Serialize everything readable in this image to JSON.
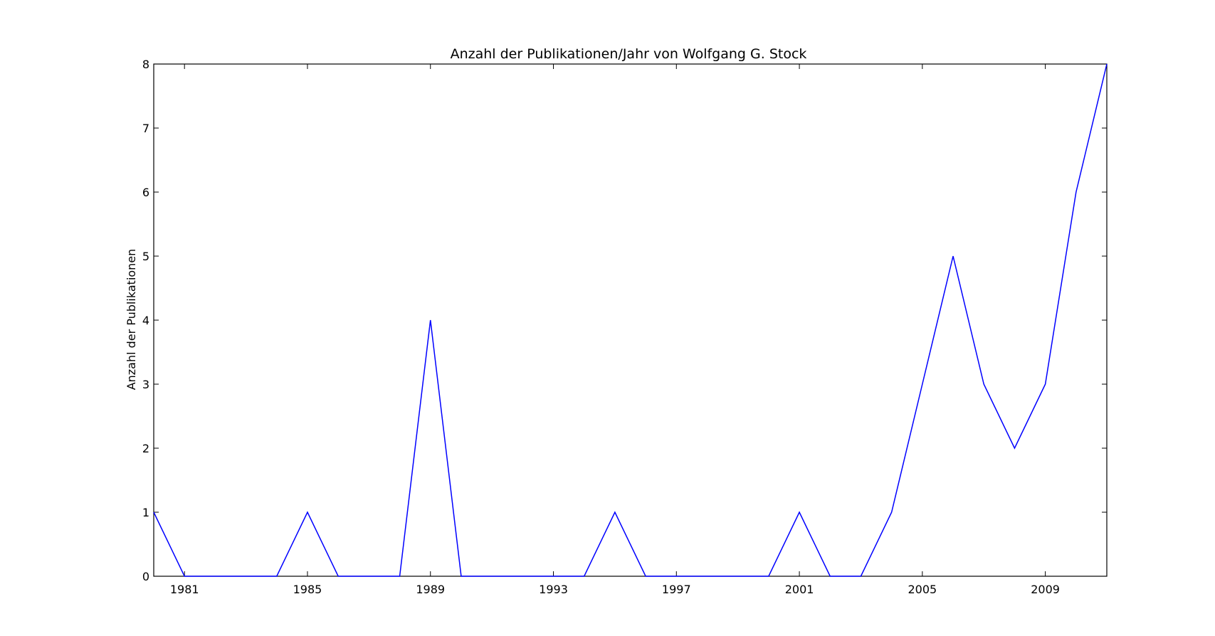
{
  "chart_data": {
    "type": "line",
    "title": "Anzahl der Publikationen/Jahr von Wolfgang G. Stock",
    "xlabel": "",
    "ylabel": "Anzahl der Publikationen",
    "xlim": [
      1980,
      2011
    ],
    "ylim": [
      0,
      8
    ],
    "xticks": [
      1981,
      1985,
      1989,
      1993,
      1997,
      2001,
      2005,
      2009
    ],
    "yticks": [
      0,
      1,
      2,
      3,
      4,
      5,
      6,
      7,
      8
    ],
    "grid": false,
    "line_color": "#0000ff",
    "series": [
      {
        "x": [
          1980,
          1981,
          1982,
          1983,
          1984,
          1985,
          1986,
          1987,
          1988,
          1989,
          1990,
          1991,
          1992,
          1993,
          1994,
          1995,
          1996,
          1997,
          1998,
          1999,
          2000,
          2001,
          2002,
          2003,
          2004,
          2005,
          2006,
          2007,
          2008,
          2009,
          2010,
          2011
        ],
        "values": [
          1,
          0,
          0,
          0,
          0,
          1,
          0,
          0,
          0,
          4,
          0,
          0,
          0,
          0,
          0,
          1,
          0,
          0,
          0,
          0,
          0,
          1,
          0,
          0,
          1,
          3,
          5,
          3,
          2,
          3,
          6,
          8
        ]
      }
    ]
  }
}
